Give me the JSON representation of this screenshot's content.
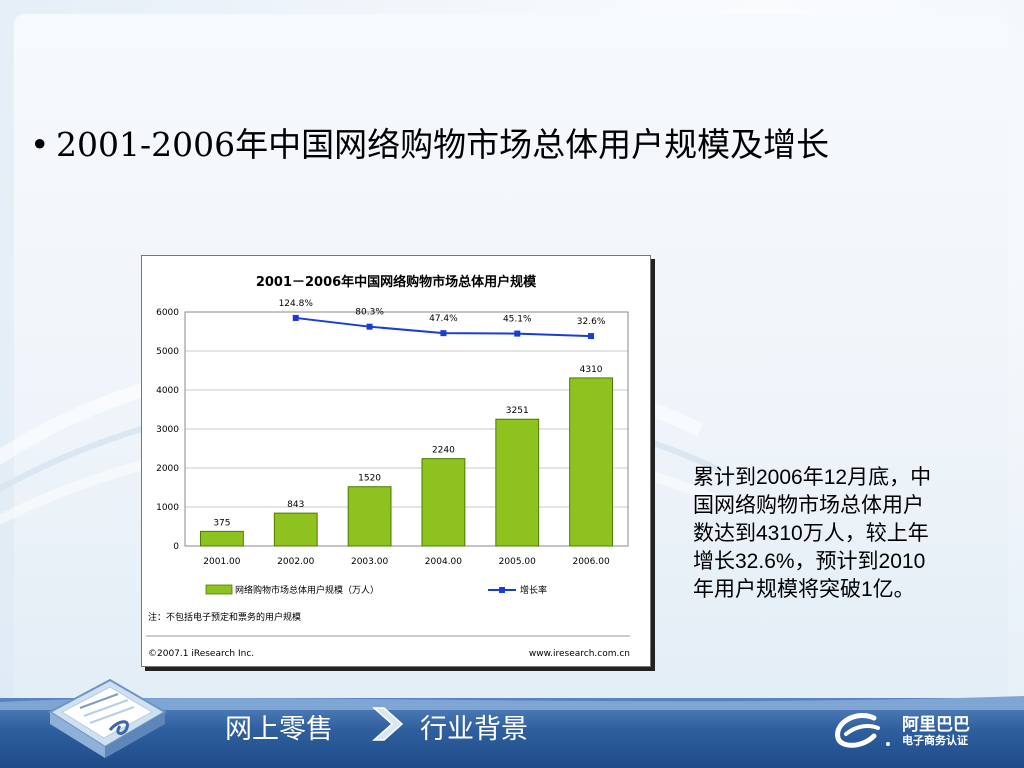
{
  "slide": {
    "title": "2001-2006年中国网络购物市场总体用户规模及增长",
    "bullet": "•",
    "note_lines": [
      "累计到2006年12月底，中",
      "国网络购物市场总体用户",
      "数达到4310万人，较上年",
      "增长32.6%，预计到2010",
      "年用户规模将突破1亿。"
    ]
  },
  "footer": {
    "section": "网上零售",
    "subsection": "行业背景",
    "brand_cn": "阿里巴巴",
    "brand_sub": "电子商务认证"
  },
  "colors": {
    "bar_fill": "#8dc21f",
    "bar_stroke": "#4d7a00",
    "line": "#1a3cd6",
    "footer": "#2f5f9e"
  },
  "chart_data": {
    "type": "bar",
    "title": "2001－2006年中国网络购物市场总体用户规模",
    "categories": [
      "2001.00",
      "2002.00",
      "2003.00",
      "2004.00",
      "2005.00",
      "2006.00"
    ],
    "series": [
      {
        "name": "网络购物市场总体用户规模（万人）",
        "type": "bar",
        "values": [
          375,
          843,
          1520,
          2240,
          3251,
          4310
        ],
        "labels": [
          "375",
          "843",
          "1520",
          "2240",
          "3251",
          "4310"
        ]
      },
      {
        "name": "增长率",
        "type": "line",
        "values": [
          null,
          124.8,
          80.3,
          47.4,
          45.1,
          32.6
        ],
        "labels": [
          "",
          "124.8%",
          "80.3%",
          "47.4%",
          "45.1%",
          "32.6%"
        ]
      }
    ],
    "y_ticks": [
      "0",
      "1000",
      "2000",
      "3000",
      "4000",
      "5000",
      "6000"
    ],
    "ylim": [
      0,
      6000
    ],
    "line_scale": [
      -1035,
      155
    ],
    "grid": true,
    "legend": "bottom",
    "note": "注：不包括电子预定和票务的用户规模",
    "source_left": "©2007.1  iResearch Inc.",
    "source_right": "www.iresearch.com.cn"
  }
}
